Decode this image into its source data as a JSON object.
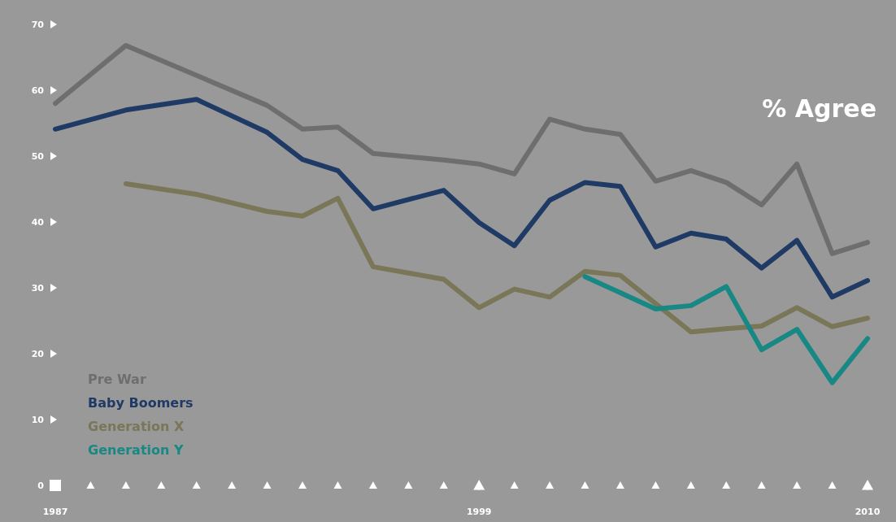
{
  "chart_data": {
    "type": "line",
    "title": "% Agree",
    "xlim": [
      1987,
      2010
    ],
    "xticks": [
      1987,
      {
        "value": 1988,
        "label": null
      },
      {
        "value": 1989,
        "label": null
      },
      {
        "value": 1990,
        "label": null
      },
      {
        "value": 1991,
        "label": null
      },
      {
        "value": 1992,
        "label": null
      },
      {
        "value": 1993,
        "label": null
      },
      {
        "value": 1994,
        "label": null
      },
      {
        "value": 1995,
        "label": null
      },
      {
        "value": 1996,
        "label": null
      },
      {
        "value": 1997,
        "label": null
      },
      {
        "value": 1998,
        "label": null
      },
      1999,
      {
        "value": 2000,
        "label": null
      },
      {
        "value": 2001,
        "label": null
      },
      {
        "value": 2002,
        "label": null
      },
      {
        "value": 2003,
        "label": null
      },
      {
        "value": 2004,
        "label": null
      },
      {
        "value": 2005,
        "label": null
      },
      {
        "value": 2006,
        "label": null
      },
      {
        "value": 2007,
        "label": null
      },
      {
        "value": 2008,
        "label": null
      },
      {
        "value": 2009,
        "label": null
      },
      2010
    ],
    "ylim": [
      0,
      70
    ],
    "yticks": [
      0,
      10,
      20,
      30,
      40,
      50,
      60,
      70
    ],
    "grid": false,
    "legend": "bottom left",
    "marker": "none",
    "line_style": "solid",
    "series": [
      {
        "name": "Pre War",
        "color": "#6e6e6e",
        "x": [
          1987,
          1989,
          1993,
          1994,
          1995,
          1996,
          1998,
          1999,
          2000,
          2001,
          2002,
          2003,
          2004,
          2005,
          2006,
          2007,
          2008,
          2009,
          2010
        ],
        "values": [
          58.0,
          66.8,
          57.7,
          54.1,
          54.4,
          50.4,
          49.4,
          48.8,
          47.3,
          55.6,
          54.1,
          53.3,
          46.2,
          47.8,
          46.0,
          42.6,
          48.8,
          35.2,
          36.9
        ]
      },
      {
        "name": "Baby Boomers",
        "color": "#1f3a64",
        "x": [
          1987,
          1989,
          1991,
          1993,
          1994,
          1995,
          1996,
          1998,
          1999,
          2000,
          2001,
          2002,
          2003,
          2004,
          2005,
          2006,
          2007,
          2008,
          2009,
          2010
        ],
        "values": [
          54.1,
          57.0,
          58.6,
          53.6,
          49.5,
          47.8,
          42.0,
          44.8,
          39.9,
          36.4,
          43.3,
          46.0,
          45.4,
          36.2,
          38.3,
          37.4,
          33.0,
          37.2,
          28.6,
          31.1
        ]
      },
      {
        "name": "Generation X",
        "color": "#7a7658",
        "x": [
          1989,
          1991,
          1993,
          1994,
          1995,
          1996,
          1998,
          1999,
          2000,
          2001,
          2002,
          2003,
          2005,
          2006,
          2007,
          2008,
          2009,
          2010
        ],
        "values": [
          45.8,
          44.2,
          41.6,
          40.9,
          43.6,
          33.2,
          31.3,
          27.0,
          29.8,
          28.6,
          32.5,
          31.9,
          23.3,
          23.8,
          24.2,
          27.0,
          24.1,
          25.4
        ]
      },
      {
        "name": "Generation Y",
        "color": "#178884",
        "x": [
          2002,
          2004,
          2005,
          2006,
          2007,
          2008,
          2009,
          2010
        ],
        "values": [
          31.7,
          26.8,
          27.3,
          30.2,
          20.6,
          23.7,
          15.6,
          22.3
        ]
      }
    ]
  }
}
